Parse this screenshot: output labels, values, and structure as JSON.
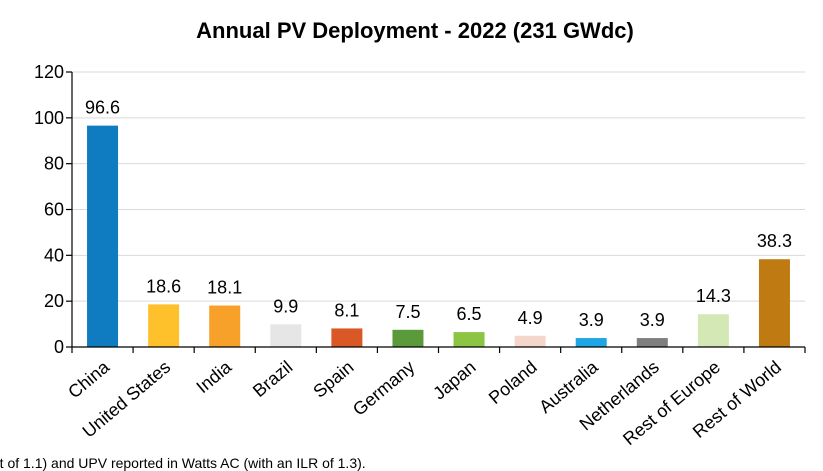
{
  "chart_data": {
    "type": "bar",
    "title": "Annual PV Deployment - 2022 (231 GWdc)",
    "categories": [
      "China",
      "United States",
      "India",
      "Brazil",
      "Spain",
      "Germany",
      "Japan",
      "Poland",
      "Australia",
      "Netherlands",
      "Rest of Europe",
      "Rest of World"
    ],
    "values": [
      96.6,
      18.6,
      18.1,
      9.9,
      8.1,
      7.5,
      6.5,
      4.9,
      3.9,
      3.9,
      14.3,
      38.3
    ],
    "data_labels": [
      "96.6",
      "18.6",
      "18.1",
      "9.9",
      "8.1",
      "7.5",
      "6.5",
      "4.9",
      "3.9",
      "3.9",
      "14.3",
      "38.3"
    ],
    "colors": [
      "#0F7CC1",
      "#FFC12B",
      "#F7A12A",
      "#E6E6E6",
      "#DA5726",
      "#5A9A3A",
      "#8CC544",
      "#F5D6CB",
      "#1EA5E3",
      "#7F7F7F",
      "#D3E8B5",
      "#C07A12"
    ],
    "ylim": [
      0,
      120
    ],
    "yticks": [
      0,
      20,
      40,
      60,
      80,
      100,
      120
    ],
    "xlabel": "",
    "ylabel": "",
    "grid": true,
    "legend": "none"
  },
  "footnote": "...t of 1.1) and UPV reported in Watts AC (with an ILR of 1.3)."
}
